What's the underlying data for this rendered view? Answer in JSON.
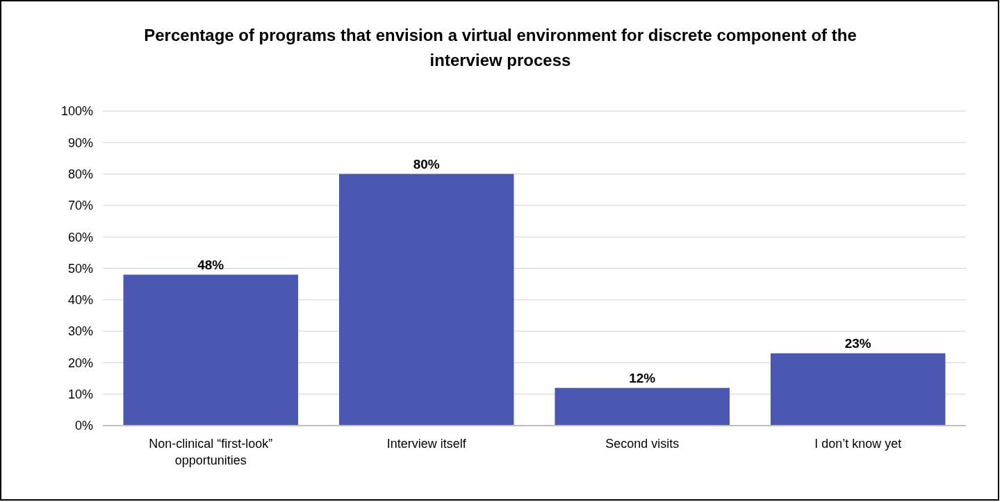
{
  "chart_data": {
    "type": "bar",
    "title": "Percentage of programs that envision a virtual environment for discrete component of the interview process",
    "categories": [
      "Non-clinical “first-look” opportunities",
      "Interview itself",
      "Second visits",
      "I don’t know yet"
    ],
    "values": [
      48,
      80,
      12,
      23
    ],
    "value_labels": [
      "48%",
      "80%",
      "12%",
      "23%"
    ],
    "color": "#4b58b2",
    "ylim": [
      0,
      100
    ],
    "yticks": [
      {
        "value": 0,
        "label": "0%"
      },
      {
        "value": 10,
        "label": "10%"
      },
      {
        "value": 20,
        "label": "20%"
      },
      {
        "value": 30,
        "label": "30%"
      },
      {
        "value": 40,
        "label": "40%"
      },
      {
        "value": 50,
        "label": "50%"
      },
      {
        "value": 60,
        "label": "60%"
      },
      {
        "value": 70,
        "label": "70%"
      },
      {
        "value": 80,
        "label": "80%"
      },
      {
        "value": 90,
        "label": "90%"
      },
      {
        "value": 100,
        "label": "100%"
      }
    ],
    "grid": "y"
  }
}
